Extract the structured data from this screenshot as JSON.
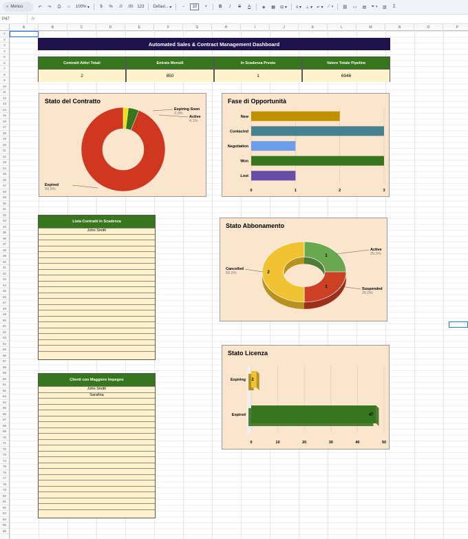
{
  "toolbar": {
    "search": "Menus",
    "zoom": "100%",
    "currency": "$",
    "percent": "%",
    "dec_decrease": ".0",
    "dec_increase": ".00",
    "number_format": "123",
    "font": "Defaul...",
    "font_size": "10",
    "bold": "B",
    "italic": "I",
    "strike": "S",
    "text_color": "A"
  },
  "formula_bar": {
    "cell_ref": "P47",
    "fx": "fx"
  },
  "columns": [
    "A",
    "B",
    "C",
    "D",
    "E",
    "F",
    "G",
    "H",
    "I",
    "J",
    "K",
    "L",
    "M",
    "N",
    "O",
    "P"
  ],
  "rows": [
    "1",
    "2",
    "3",
    "4",
    "5",
    "6",
    "7",
    "8",
    "9",
    "10",
    "11",
    "12",
    "13",
    "14",
    "15",
    "16",
    "17",
    "18",
    "19",
    "20",
    "21",
    "22",
    "23",
    "24",
    "25",
    "26",
    "27",
    "28",
    "29",
    "30",
    "31",
    "32",
    "33",
    "34",
    "35",
    "36",
    "37",
    "38",
    "39",
    "40",
    "41",
    "42",
    "43",
    "44",
    "45",
    "46",
    "47",
    "48",
    "49",
    "50",
    "51",
    "52",
    "53",
    "54",
    "55",
    "56",
    "57",
    "58",
    "59",
    "60",
    "61",
    "62",
    "63",
    "64",
    "65",
    "66",
    "67",
    "68",
    "69",
    "70",
    "71",
    "72",
    "73",
    "74",
    "75",
    "76",
    "77",
    "78",
    "79",
    "80",
    "81",
    "82",
    "83",
    "84",
    "85",
    "86"
  ],
  "dashboard": {
    "title": "Automated Sales & Contract Management Dashboard",
    "kpis": [
      {
        "label": "Contratti Attivi Totali",
        "value": "2"
      },
      {
        "label": "Entrate Mensili",
        "value": "850"
      },
      {
        "label": "In Scadenza Presto",
        "value": "1"
      },
      {
        "label": "Valore Totale Pipeline",
        "value": "6946"
      }
    ],
    "expiring_list": {
      "header": "Lista Contratti in Scadenza",
      "items": [
        "John Smith"
      ]
    },
    "engaged_list": {
      "header": "Clienti con Maggiore Impegno",
      "items": [
        "John Smith",
        "Sarafina"
      ]
    }
  },
  "chart_data": [
    {
      "type": "pie",
      "title": "Stato del Contratto",
      "labels": [
        "Expiring Soon",
        "Active",
        "Expired"
      ],
      "values": [
        2.0,
        4.1,
        93.9
      ],
      "value_labels": [
        "2.0%",
        "4.1%",
        "93.9%"
      ],
      "colors": [
        "#f1e10b",
        "#38761d",
        "#d0371f"
      ],
      "donut": true
    },
    {
      "type": "bar",
      "orientation": "horizontal",
      "title": "Fase di Opportunità",
      "categories": [
        "New",
        "Contacted",
        "Negotiation",
        "Won",
        "Lost"
      ],
      "values": [
        2,
        3,
        1,
        3,
        1
      ],
      "colors": [
        "#bf9000",
        "#45818e",
        "#6d9eeb",
        "#38761d",
        "#674ea7"
      ],
      "xlim": [
        0,
        3
      ],
      "xticks": [
        "0",
        "1",
        "2",
        "3"
      ]
    },
    {
      "type": "pie",
      "title": "Stato Abbonamento",
      "labels": [
        "Active",
        "Suspended",
        "Cancelled"
      ],
      "values": [
        1,
        1,
        2
      ],
      "value_labels": [
        "25.0%",
        "25.0%",
        "50.0%"
      ],
      "colors": [
        "#6aa84f",
        "#cc4125",
        "#f1c232"
      ],
      "donut": true
    },
    {
      "type": "bar",
      "orientation": "horizontal",
      "title": "Stato Licenza",
      "categories": [
        "Expiring",
        "Expired"
      ],
      "values": [
        2,
        47
      ],
      "colors": [
        "#f1c232",
        "#38761d"
      ],
      "xlim": [
        0,
        50
      ],
      "xticks": [
        "0",
        "10",
        "20",
        "30",
        "40",
        "50"
      ]
    }
  ]
}
